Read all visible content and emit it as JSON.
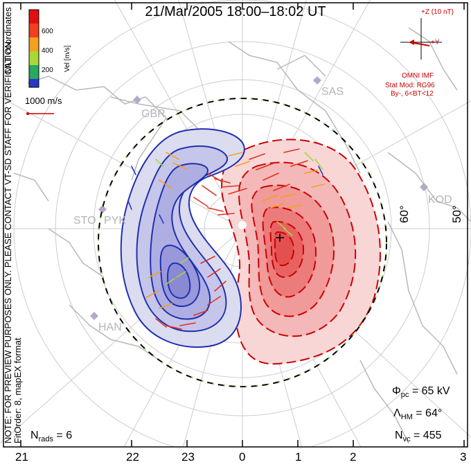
{
  "title": "21/Mar/2005 18:00–18:02 UT",
  "side_labels": {
    "preview_note": "NOTE: FOR PREVIEW PURPOSES ONLY. PLEASE CONTACT VT-SD STAFF FOR VERIFICATION.",
    "fit_info": "FitOrder: 8, mapEX format",
    "coords": "MLT coordinates"
  },
  "legend": {
    "title": "Vel [m/s]",
    "ticks": [
      "600",
      "400",
      "200"
    ],
    "colors": [
      "#e01010",
      "#f04020",
      "#f5a020",
      "#a8d838",
      "#28a860",
      "#2838c8"
    ]
  },
  "scale_vector": {
    "label": "1000 m/s"
  },
  "imf": {
    "z_label": "+Z (10 nT)",
    "y_label": "+Y",
    "source": "OMNI IMF",
    "model": "Stat Mod: RG96",
    "condition": "By-, 6<BT<12"
  },
  "stations": [
    "SAS",
    "GBR",
    "KOD",
    "STO",
    "PYK",
    "HAN"
  ],
  "latitude_labels": [
    "60°",
    "50°"
  ],
  "stats": {
    "phi_pc_symbol": "Φ",
    "phi_pc_sub": "pc",
    "phi_pc_value": "= 65 kV",
    "lambda_symbol": "Λ",
    "lambda_sub": "HM",
    "lambda_value": "= 64°",
    "nvc_symbol": "N",
    "nvc_sub": "vc",
    "nvc_value": "= 455",
    "nrads_symbol": "N",
    "nrads_sub": "rads",
    "nrads_value": "= 6"
  },
  "mlt_ticks": [
    "21",
    "22",
    "23",
    "0",
    "1",
    "2",
    "3"
  ],
  "colors": {
    "positive_cell": "#e03030",
    "negative_cell": "#2030b0",
    "annotation_red": "#cc0000",
    "grid": "#cccccc",
    "land": "#b8b8b8"
  }
}
